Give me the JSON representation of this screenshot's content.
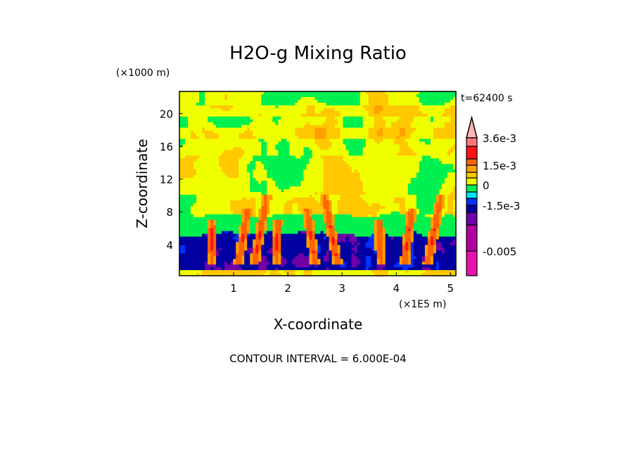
{
  "chart_data": {
    "type": "heatmap",
    "title": "H2O-g Mixing Ratio",
    "xlabel": "X-coordinate",
    "ylabel": "Z-coordinate",
    "x_units": "(×1E5 m)",
    "y_units": "(×1000 m)",
    "time_label": "t=62400 s",
    "footer": "CONTOUR INTERVAL = 6.000E-04",
    "xlim": [
      0,
      5.1
    ],
    "ylim": [
      0.2,
      22.7
    ],
    "x_ticks": [
      "1",
      "2",
      "3",
      "4",
      "5"
    ],
    "x_tick_values": [
      1,
      2,
      3,
      4,
      5
    ],
    "y_ticks": [
      "4",
      "8",
      "12",
      "16",
      "20"
    ],
    "y_tick_values": [
      4,
      8,
      12,
      16,
      20
    ],
    "contour_interval": 0.0006,
    "colorbar": {
      "labels": [
        "3.6e-3",
        "1.5e-3",
        "0",
        "-1.5e-3",
        "-0.005"
      ],
      "label_values": [
        0.0036,
        0.0015,
        0,
        -0.0015,
        -0.005
      ],
      "colors_top_to_bottom": [
        "#ff7878",
        "#ff1414",
        "#ff6400",
        "#ffa000",
        "#ffc800",
        "#f0ff00",
        "#00f050",
        "#00e8ff",
        "#0030ff",
        "#0000a0",
        "#7000a8",
        "#b000a0",
        "#e810b0"
      ],
      "overflow_color": "#ffb4b4",
      "level_bounds": [
        0.0036,
        0.003,
        0.0018,
        0.0012,
        0.0006,
        0.0,
        -0.0006,
        -0.0012,
        -0.0018,
        -0.0024,
        -0.003,
        -0.0042,
        -0.005,
        -0.006
      ]
    },
    "field_description_bands": [
      {
        "z_range": [
          0.2,
          0.8
        ],
        "typical_value": 0.0
      },
      {
        "z_range": [
          0.8,
          5.2
        ],
        "typical_value": -0.0021
      },
      {
        "z_range": [
          5.2,
          7.6
        ],
        "typical_value": -0.0009
      },
      {
        "z_range": [
          7.6,
          22.7
        ],
        "typical_value": -0.0001
      }
    ]
  }
}
